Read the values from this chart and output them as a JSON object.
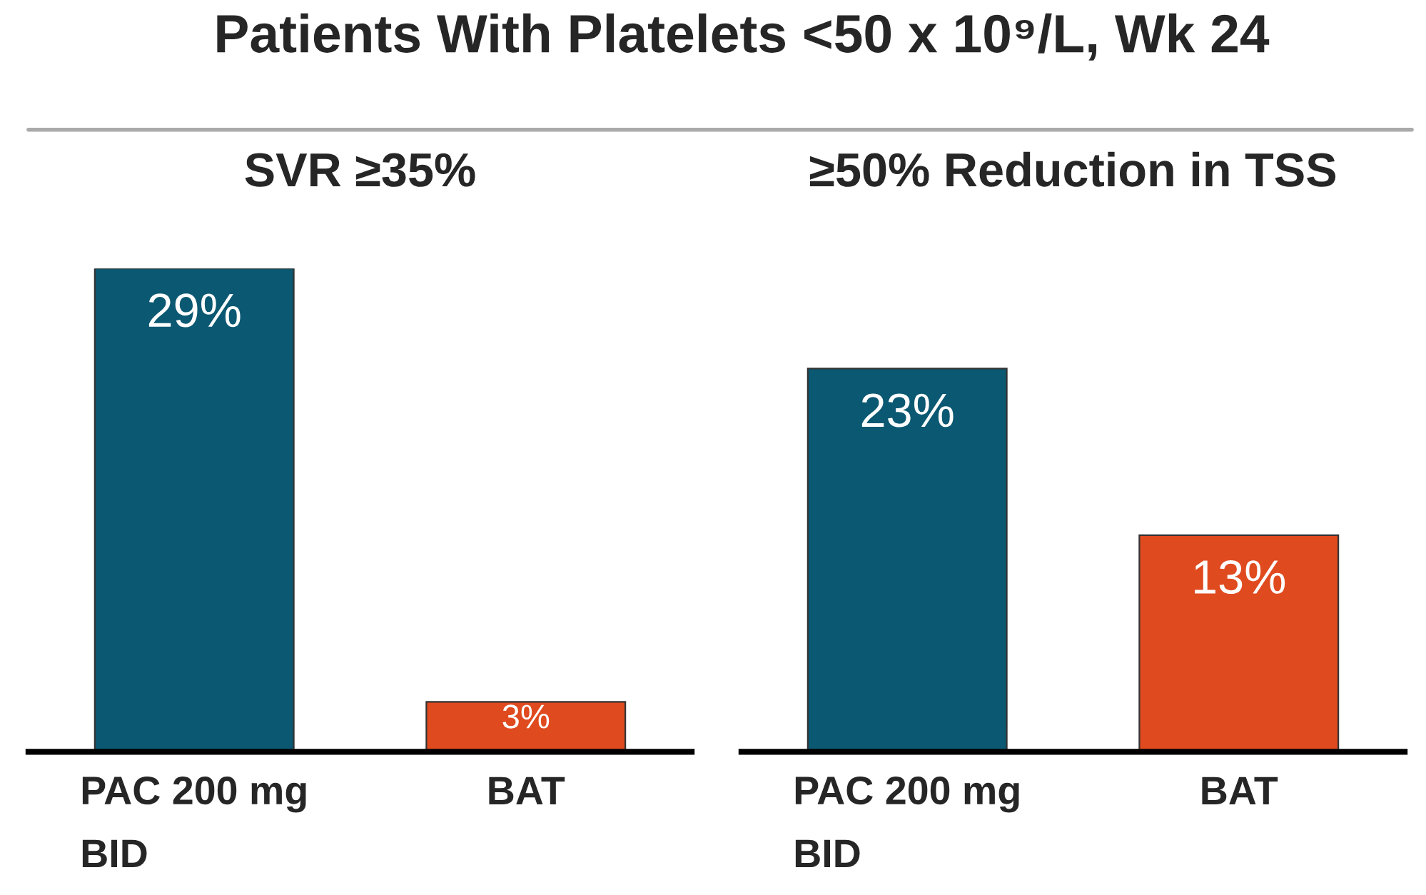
{
  "chart_data": [
    {
      "type": "bar",
      "title": "SVR ≥35%",
      "categories": [
        "PAC 200 mg BID",
        "BAT"
      ],
      "values": [
        29,
        3
      ],
      "value_labels": [
        "29%",
        "3%"
      ],
      "colors": [
        "#0b5872",
        "#e04a1f"
      ],
      "annotations": [
        "Patients With Platelets <50 x 10⁹/L, Wk 24"
      ]
    },
    {
      "type": "bar",
      "title": "≥50% Reduction in TSS",
      "categories": [
        "PAC 200 mg BID",
        "BAT"
      ],
      "values": [
        23,
        13
      ],
      "value_labels": [
        "23%",
        "13%"
      ],
      "colors": [
        "#0b5872",
        "#e04a1f"
      ]
    }
  ]
}
